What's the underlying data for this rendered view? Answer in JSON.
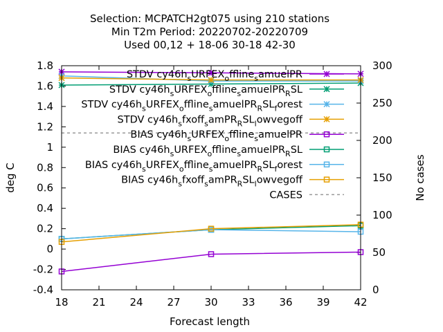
{
  "chart_data": {
    "type": "line",
    "title_lines": [
      "Selection: MCPATCH2gt075 using   210 stations",
      "Min T2m   Period: 20220702-20220709",
      "Used  00,12  + 18-06 30-18 42-30"
    ],
    "xlabel": "Forecast length",
    "ylabel": "deg C",
    "y2label": "No cases",
    "xlim": [
      18,
      42
    ],
    "ylim": [
      -0.4,
      1.8
    ],
    "y2lim": [
      0,
      300
    ],
    "xticks": [
      18,
      21,
      24,
      27,
      30,
      33,
      36,
      39,
      42
    ],
    "yticks": [
      -0.4,
      -0.2,
      0,
      0.2,
      0.4,
      0.6,
      0.8,
      1,
      1.2,
      1.4,
      1.6,
      1.8
    ],
    "yticklabels": [
      "-0.4",
      "-0.2",
      "0",
      "0.2",
      "0.4",
      "0.6",
      "0.8",
      "1",
      "1.2",
      "1.4",
      "1.6",
      "1.8"
    ],
    "y2ticks": [
      0,
      50,
      100,
      150,
      200,
      250,
      300
    ],
    "x": [
      18,
      30,
      42
    ],
    "legend_position": "top-right",
    "series": [
      {
        "name": "STDV cy46h_sURFEX_offline_samuelPR",
        "color": "#9400d3",
        "marker": "plus-x",
        "dash": "solid",
        "axis": "y",
        "values": [
          1.74,
          1.73,
          1.72
        ]
      },
      {
        "name": "STDV cy46h_sURFEX_offline_samuelPR_RSL",
        "color": "#009e73",
        "marker": "plus-x",
        "dash": "solid",
        "axis": "y",
        "values": [
          1.61,
          1.62,
          1.63
        ]
      },
      {
        "name": "STDV cy46h_sURFEX_offline_samuelPR_RSL_forest",
        "color": "#56b4e9",
        "marker": "plus-x",
        "dash": "solid",
        "axis": "y",
        "values": [
          1.7,
          1.65,
          1.65
        ]
      },
      {
        "name": "STDV cy46h_sfxoff_samPR_RSL_lowvegoff",
        "color": "#e69f00",
        "marker": "plus-x",
        "dash": "solid",
        "axis": "y",
        "values": [
          1.68,
          1.66,
          1.66
        ]
      },
      {
        "name": "BIAS cy46h_sURFEX_offline_samuelPR",
        "color": "#9400d3",
        "marker": "square",
        "dash": "solid",
        "axis": "y",
        "values": [
          -0.22,
          -0.05,
          -0.03
        ]
      },
      {
        "name": "BIAS cy46h_sURFEX_offline_samuelPR_RSL",
        "color": "#009e73",
        "marker": "square",
        "dash": "solid",
        "axis": "y",
        "values": [
          0.1,
          0.19,
          0.23
        ]
      },
      {
        "name": "BIAS cy46h_sURFEX_offline_samuelPR_RSL_forest",
        "color": "#56b4e9",
        "marker": "square",
        "dash": "solid",
        "axis": "y",
        "values": [
          0.1,
          0.19,
          0.17
        ]
      },
      {
        "name": "BIAS cy46h_sfxoff_samPR_RSL_lowvegoff",
        "color": "#e69f00",
        "marker": "square",
        "dash": "solid",
        "axis": "y",
        "values": [
          0.07,
          0.2,
          0.24
        ]
      },
      {
        "name": "CASES",
        "color": "#999999",
        "marker": "none",
        "dash": "dashed",
        "axis": "y2",
        "values": [
          210,
          210,
          210
        ]
      }
    ],
    "legend": [
      {
        "main": "STDV cy46h",
        "subs": [
          [
            "s",
            "URFEX"
          ],
          [
            "o",
            "ffline"
          ],
          [
            "s",
            "amuelPR"
          ]
        ]
      },
      {
        "main": "STDV cy46h",
        "subs": [
          [
            "s",
            "URFEX"
          ],
          [
            "o",
            "ffline"
          ],
          [
            "s",
            "amuelPR"
          ],
          [
            "R",
            "SL"
          ]
        ]
      },
      {
        "main": "STDV cy46h",
        "subs": [
          [
            "s",
            "URFEX"
          ],
          [
            "o",
            "ffline"
          ],
          [
            "s",
            "amuelPR"
          ],
          [
            "R",
            "SL"
          ],
          [
            "f",
            "orest"
          ]
        ]
      },
      {
        "main": "STDV cy46h",
        "subs": [
          [
            "s",
            "fxoff"
          ],
          [
            "s",
            "amPR"
          ],
          [
            "R",
            "SL"
          ],
          [
            "l",
            "owvegoff"
          ]
        ]
      },
      {
        "main": "BIAS cy46h",
        "subs": [
          [
            "s",
            "URFEX"
          ],
          [
            "o",
            "ffline"
          ],
          [
            "s",
            "amuelPR"
          ]
        ]
      },
      {
        "main": "BIAS cy46h",
        "subs": [
          [
            "s",
            "URFEX"
          ],
          [
            "o",
            "ffline"
          ],
          [
            "s",
            "amuelPR"
          ],
          [
            "R",
            "SL"
          ]
        ]
      },
      {
        "main": "BIAS cy46h",
        "subs": [
          [
            "s",
            "URFEX"
          ],
          [
            "o",
            "ffline"
          ],
          [
            "s",
            "amuelPR"
          ],
          [
            "R",
            "SL"
          ],
          [
            "f",
            "orest"
          ]
        ]
      },
      {
        "main": "BIAS cy46h",
        "subs": [
          [
            "s",
            "fxoff"
          ],
          [
            "s",
            "amPR"
          ],
          [
            "R",
            "SL"
          ],
          [
            "l",
            "owvegoff"
          ]
        ]
      },
      {
        "main": "CASES",
        "subs": []
      }
    ]
  }
}
